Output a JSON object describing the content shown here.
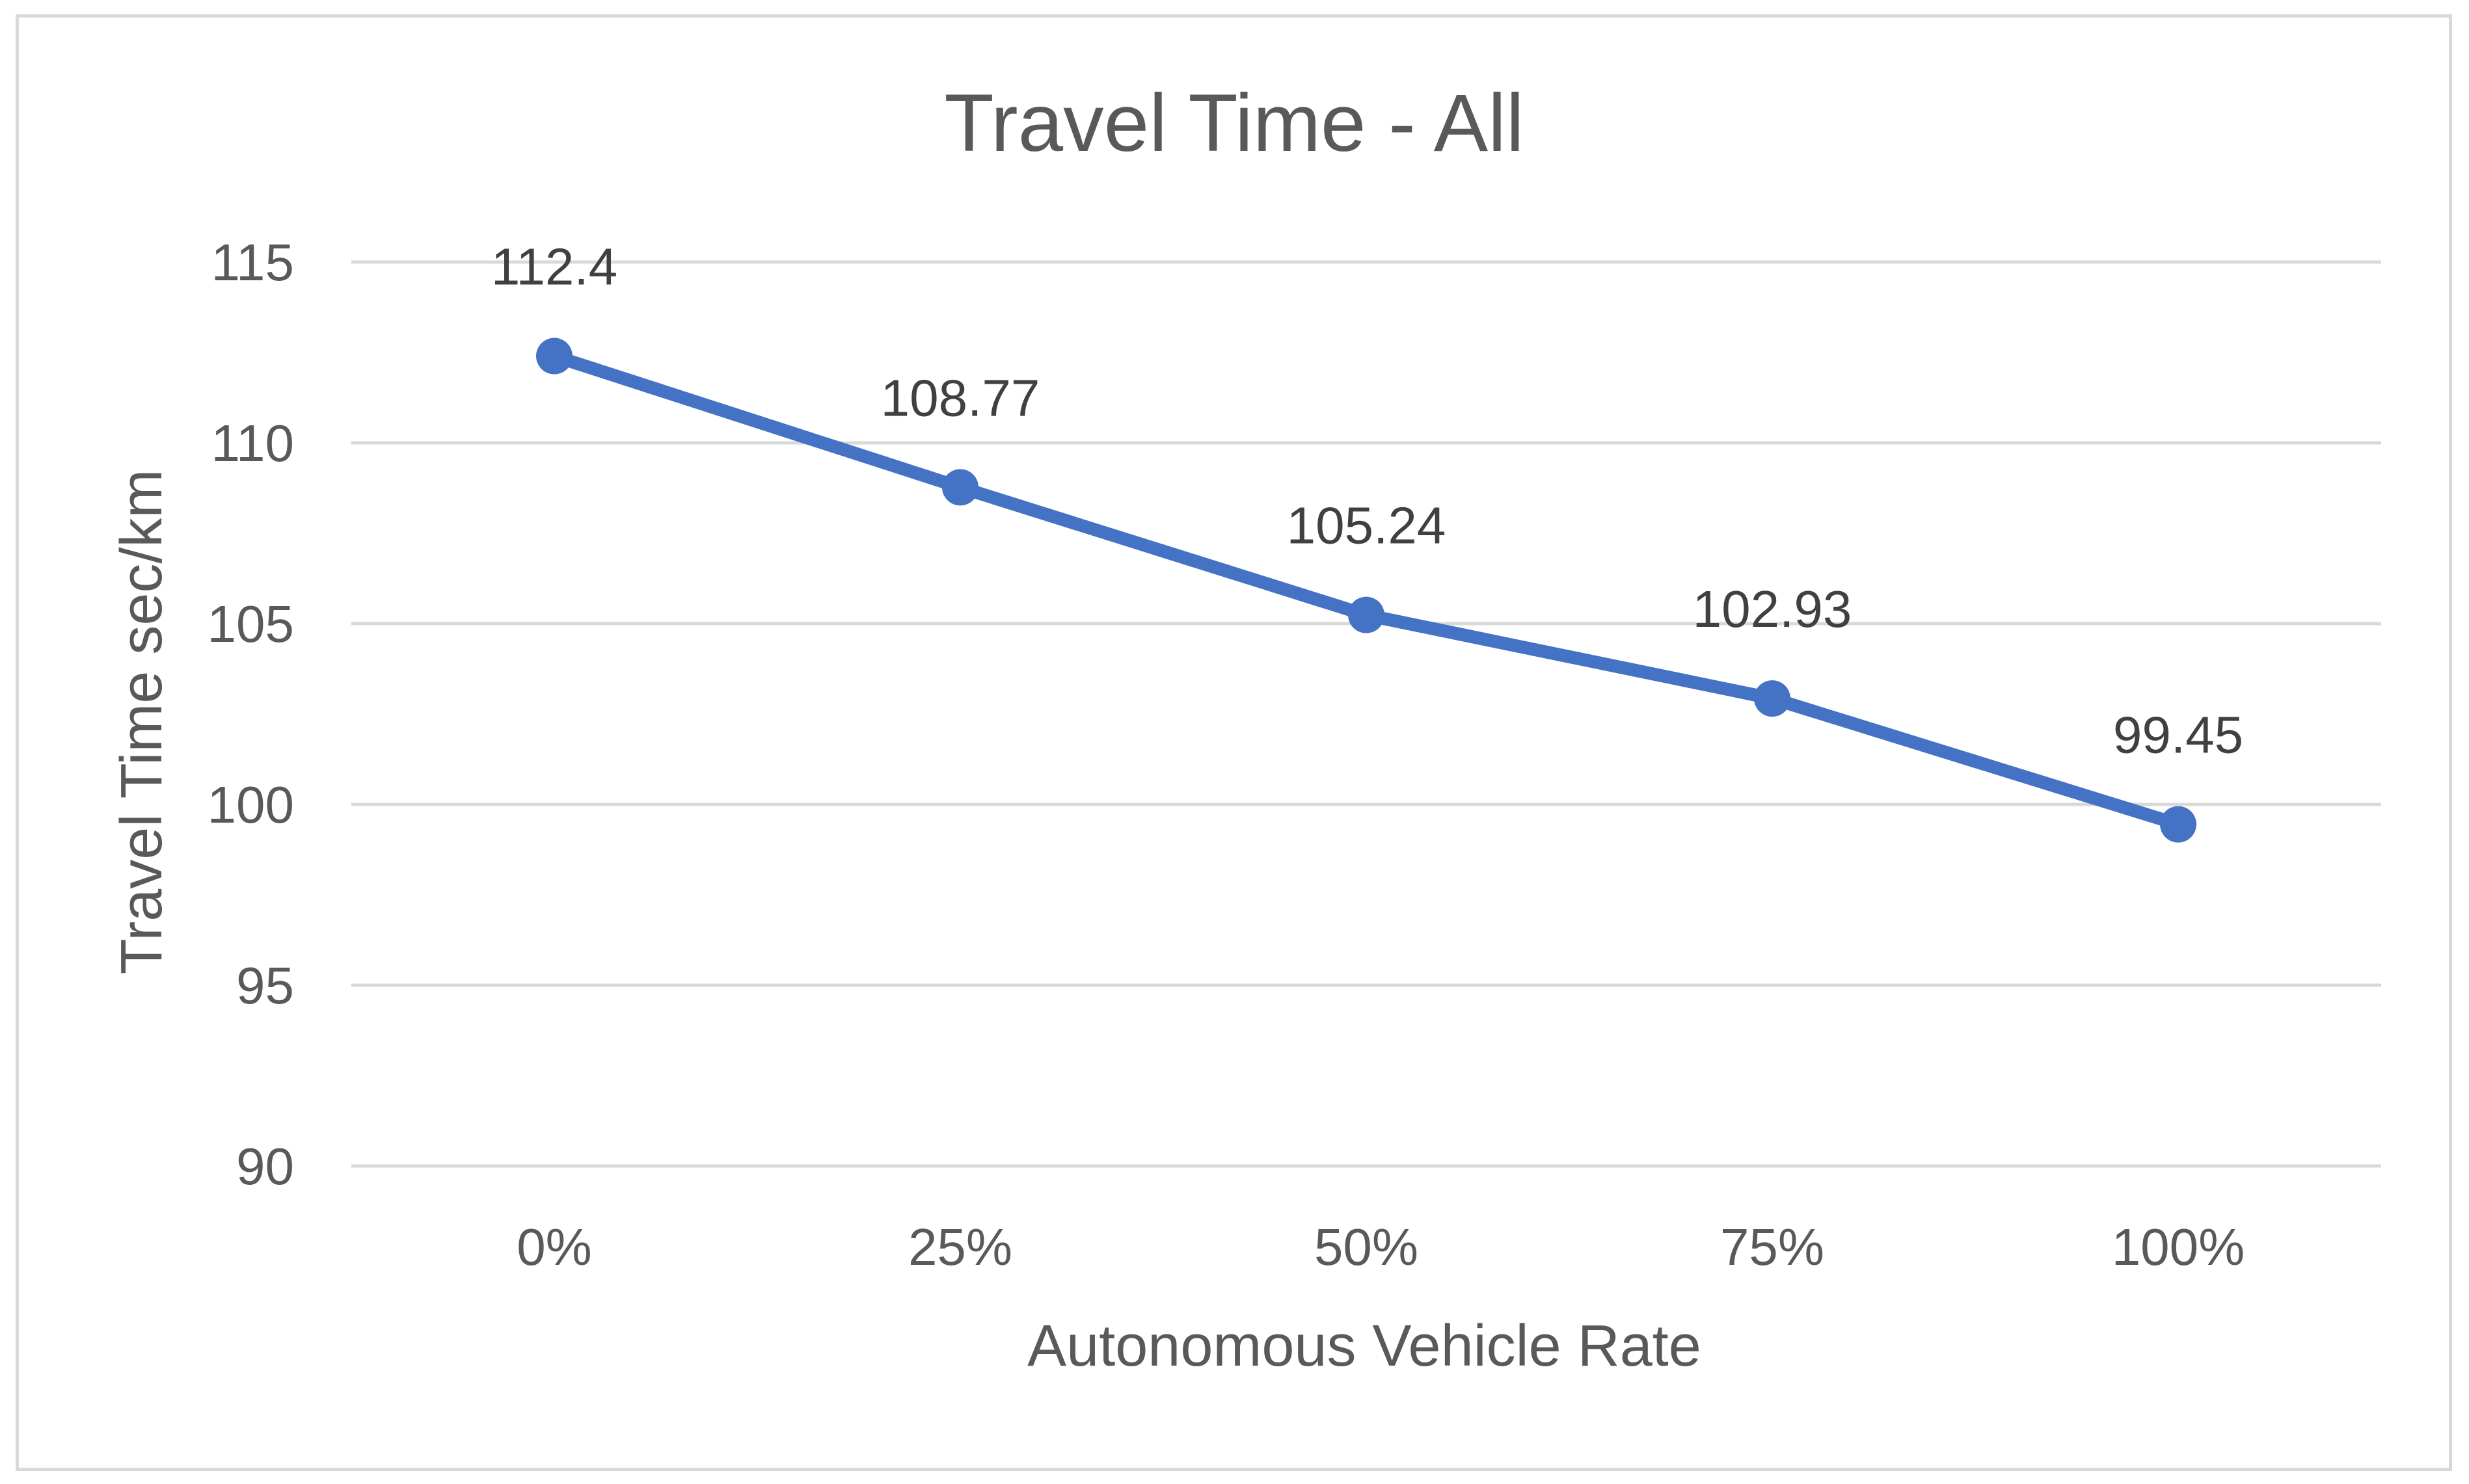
{
  "chart_data": {
    "type": "line",
    "title": "Travel Time - All",
    "xlabel": "Autonomous Vehicle Rate",
    "ylabel": "Travel Time  sec/km",
    "categories": [
      "0%",
      "25%",
      "50%",
      "75%",
      "100%"
    ],
    "series": [
      {
        "values": [
          112.4,
          108.77,
          105.24,
          102.93,
          99.45
        ],
        "labels": [
          "112.4",
          "108.77",
          "105.24",
          "102.93",
          "99.45"
        ],
        "color": "#4472c4"
      }
    ],
    "ylim": [
      90,
      115
    ],
    "yticks": [
      "90",
      "95",
      "100",
      "105",
      "110",
      "115"
    ],
    "grid": true,
    "gridColor": "#d9d9d9",
    "legend": "none"
  }
}
